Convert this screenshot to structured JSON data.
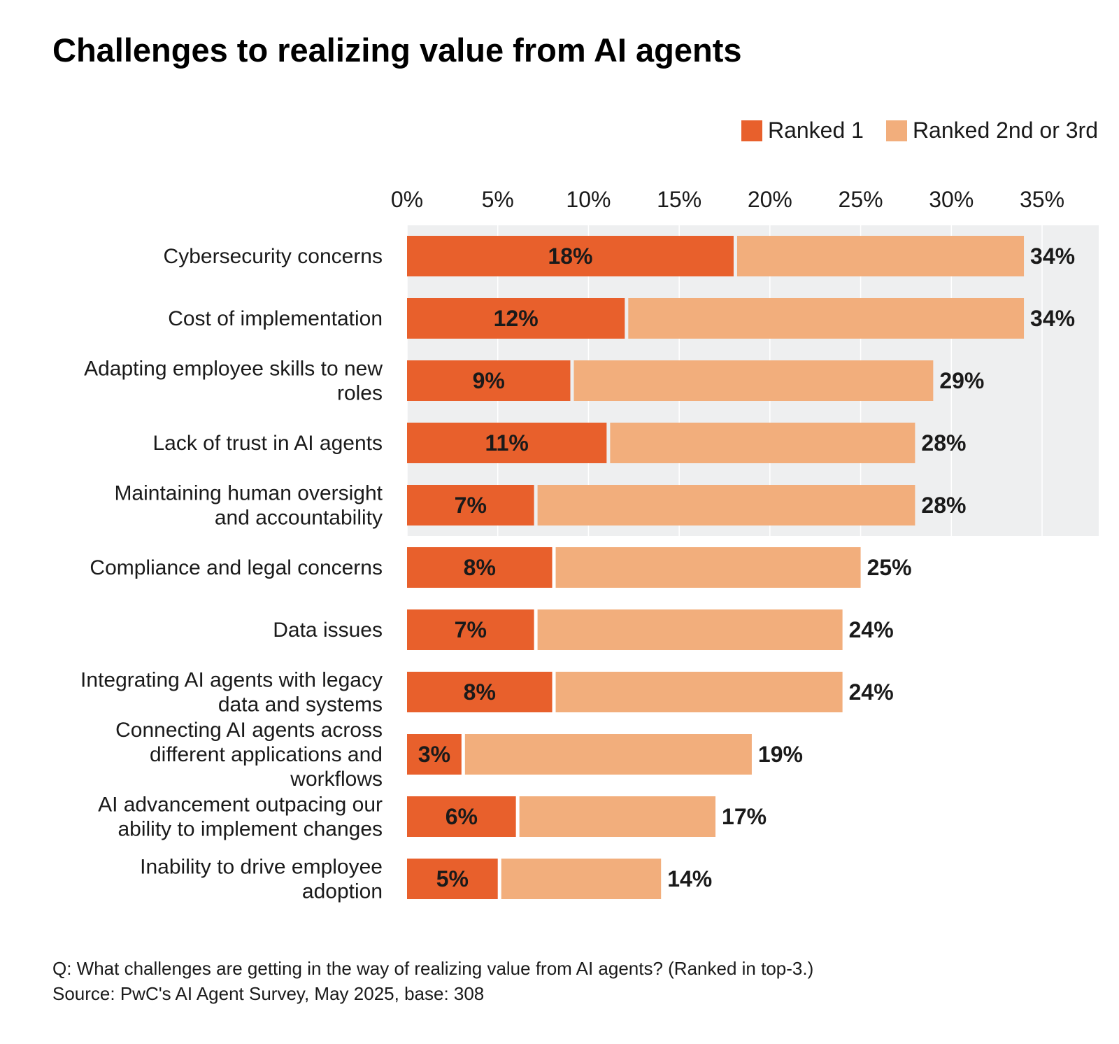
{
  "title": "Challenges to realizing value from AI agents",
  "legend": [
    {
      "label": "Ranked 1",
      "color": "#E8602C"
    },
    {
      "label": "Ranked 2nd or 3rd",
      "color": "#F2AE7C"
    }
  ],
  "footnote": {
    "question": "Q: What challenges are getting in the way of realizing value from AI agents? (Ranked in top-3.)",
    "source": "Source: PwC's AI Agent Survey, May 2025, base: 308"
  },
  "colors": {
    "ranked1": "#E8602C",
    "ranked23": "#F2AE7C",
    "highlight_bg": "#EEEFF0",
    "grid": "#FFFFFF"
  },
  "chart_data": {
    "type": "bar",
    "orientation": "horizontal",
    "stacked": true,
    "title": "Challenges to realizing value from AI agents",
    "xlim": [
      0,
      35
    ],
    "x_ticks": [
      "0%",
      "5%",
      "10%",
      "15%",
      "20%",
      "25%",
      "30%",
      "35%"
    ],
    "x_tick_values": [
      0,
      5,
      10,
      15,
      20,
      25,
      30,
      35
    ],
    "legend_position": "top-right",
    "highlighted_rows": 5,
    "categories": [
      [
        "Cybersecurity concerns"
      ],
      [
        "Cost of implementation"
      ],
      [
        "Adapting employee skills to new",
        "roles"
      ],
      [
        "Lack of trust in AI agents"
      ],
      [
        "Maintaining human oversight",
        "and accountability"
      ],
      [
        "Compliance and legal concerns"
      ],
      [
        "Data issues"
      ],
      [
        "Integrating AI agents with legacy",
        "data and systems"
      ],
      [
        "Connecting AI agents across",
        "different applications and",
        "workflows"
      ],
      [
        "AI advancement outpacing our",
        "ability to implement changes"
      ],
      [
        "Inability to drive employee",
        "adoption"
      ]
    ],
    "series": [
      {
        "name": "Ranked 1",
        "values": [
          18,
          12,
          9,
          11,
          7,
          8,
          7,
          8,
          3,
          6,
          5
        ],
        "labels": [
          "18%",
          "12%",
          "9%",
          "11%",
          "7%",
          "8%",
          "7%",
          "8%",
          "3%",
          "6%",
          "5%"
        ]
      },
      {
        "name": "Ranked 2nd or 3rd",
        "values": [
          16,
          22,
          20,
          17,
          21,
          17,
          17,
          16,
          16,
          11,
          9
        ]
      }
    ],
    "totals": [
      34,
      34,
      29,
      28,
      28,
      25,
      24,
      24,
      19,
      17,
      14
    ],
    "total_labels": [
      "34%",
      "34%",
      "29%",
      "28%",
      "28%",
      "25%",
      "24%",
      "24%",
      "19%",
      "17%",
      "14%"
    ]
  }
}
